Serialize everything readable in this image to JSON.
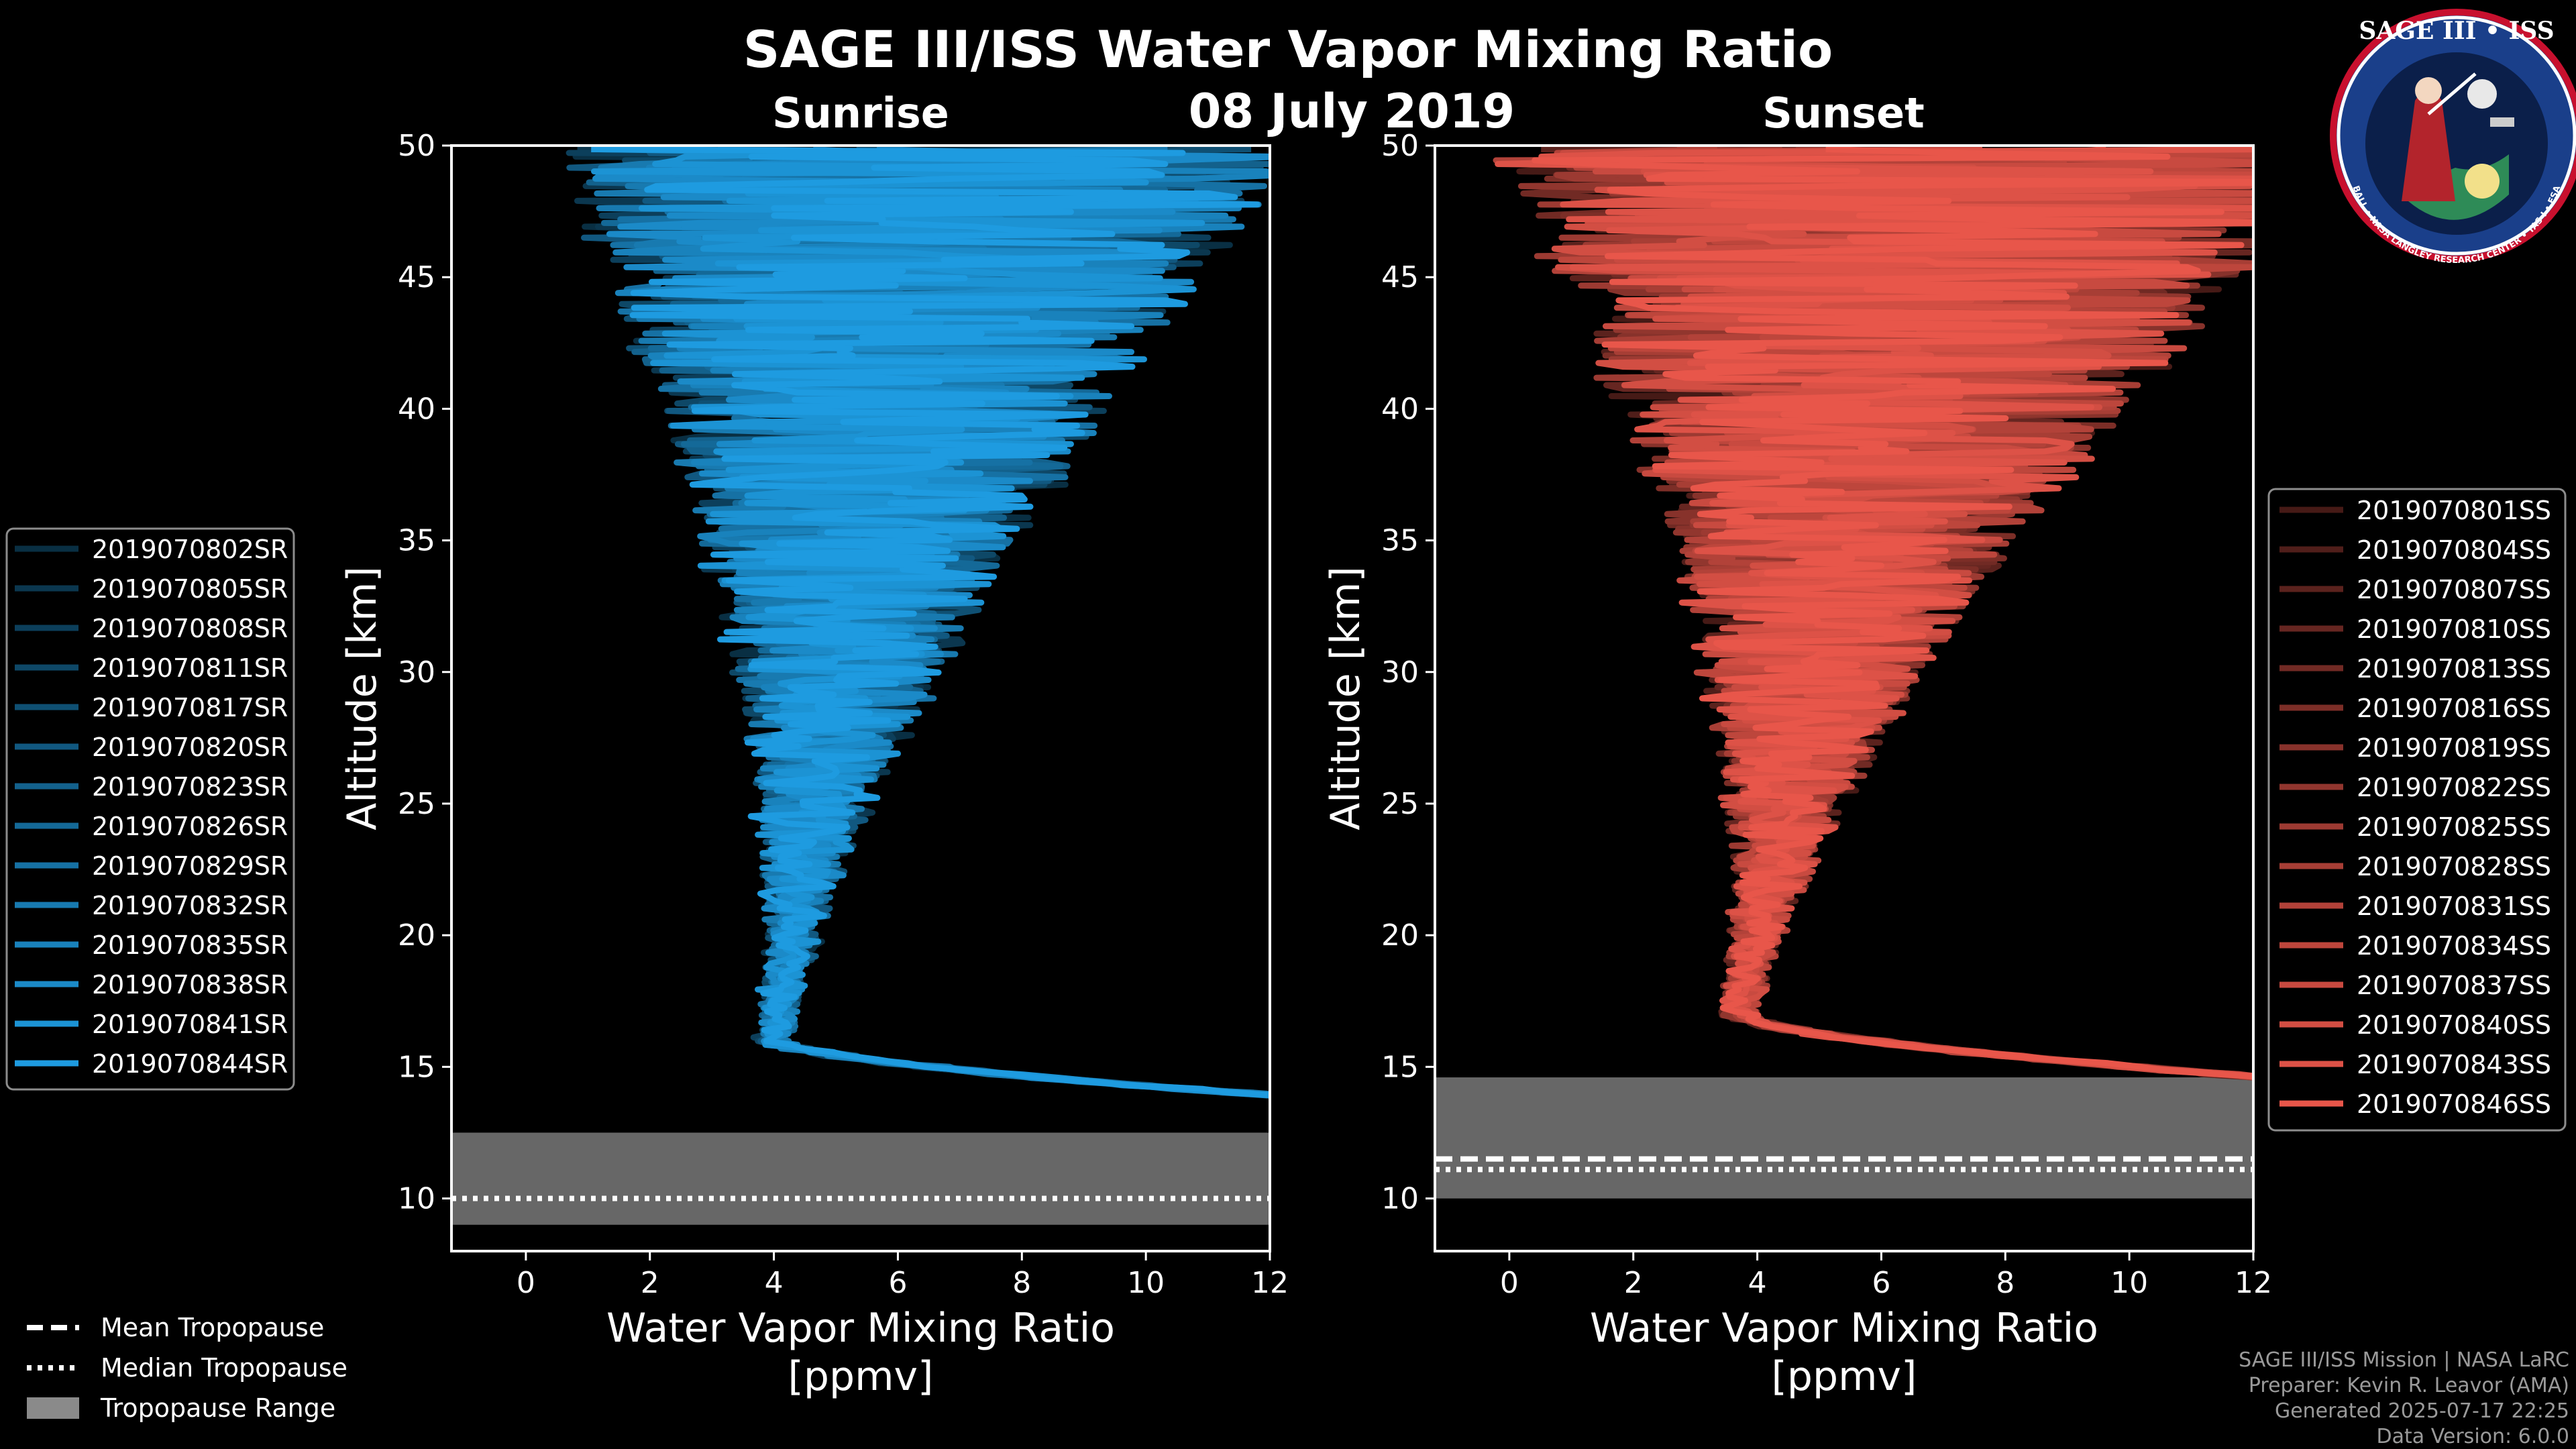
{
  "title": "SAGE III/ISS Water Vapor Mixing Ratio",
  "date": "08 July 2019",
  "logo": {
    "top_text": "SAGE III • ISS",
    "bottom_text": "BALL • NASA LANGLEY RESEARCH CENTER • TAS-I • ESA"
  },
  "colors": {
    "sunrise": "#1e9be0",
    "sunset": "#e8564a",
    "tropo_range": "#8a8a8a",
    "frame": "#ffffff"
  },
  "credits": [
    "SAGE III/ISS Mission | NASA LaRC",
    "Preparer: Kevin R. Leavor (AMA)",
    "Generated 2025-07-17 22:25",
    "Data Version: 6.0.0"
  ],
  "tropo_legend": [
    "Mean Tropopause",
    "Median Tropopause",
    "Tropopause Range"
  ],
  "chart_data": [
    {
      "type": "line",
      "panel": "sunrise",
      "subtitle": "Sunrise",
      "xlabel": "Water Vapor Mixing Ratio",
      "xunit": "[ppmv]",
      "ylabel": "Altitude [km]",
      "xlim": [
        -1.2,
        12
      ],
      "ylim": [
        8,
        50
      ],
      "xticks": [
        0,
        2,
        4,
        6,
        8,
        10,
        12
      ],
      "yticks": [
        10,
        15,
        20,
        25,
        30,
        35,
        40,
        45,
        50
      ],
      "series": [
        "2019070802SR",
        "2019070805SR",
        "2019070808SR",
        "2019070811SR",
        "2019070817SR",
        "2019070820SR",
        "2019070823SR",
        "2019070826SR",
        "2019070829SR",
        "2019070832SR",
        "2019070835SR",
        "2019070838SR",
        "2019070841SR",
        "2019070844SR"
      ],
      "profile_model": {
        "trop_min_x": 4.0,
        "trop_min_alt": 16,
        "x_at_50km": 6.5,
        "noise_ppmv_at_50km": 6
      },
      "tropopause": {
        "mean_km": null,
        "median_km": 10.0,
        "range_km": [
          9.0,
          12.5
        ]
      }
    },
    {
      "type": "line",
      "panel": "sunset",
      "subtitle": "Sunset",
      "xlabel": "Water Vapor Mixing Ratio",
      "xunit": "[ppmv]",
      "ylabel": "Altitude [km]",
      "xlim": [
        -1.2,
        12
      ],
      "ylim": [
        8,
        50
      ],
      "xticks": [
        0,
        2,
        4,
        6,
        8,
        10,
        12
      ],
      "yticks": [
        10,
        15,
        20,
        25,
        30,
        35,
        40,
        45,
        50
      ],
      "series": [
        "2019070801SS",
        "2019070804SS",
        "2019070807SS",
        "2019070810SS",
        "2019070813SS",
        "2019070816SS",
        "2019070819SS",
        "2019070822SS",
        "2019070825SS",
        "2019070828SS",
        "2019070831SS",
        "2019070834SS",
        "2019070837SS",
        "2019070840SS",
        "2019070843SS",
        "2019070846SS"
      ],
      "profile_model": {
        "trop_min_x": 3.7,
        "trop_min_alt": 17,
        "x_at_50km": 6.8,
        "noise_ppmv_at_50km": 7
      },
      "tropopause": {
        "mean_km": 11.5,
        "median_km": 11.1,
        "range_km": [
          10.0,
          14.6
        ]
      }
    }
  ]
}
